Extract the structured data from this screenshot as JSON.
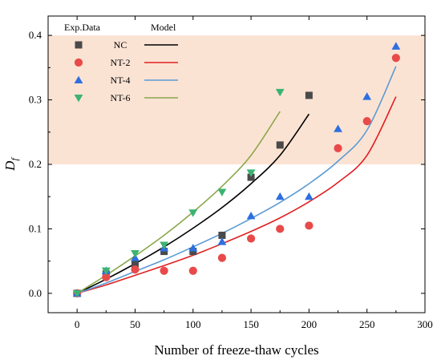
{
  "chart_data": {
    "type": "scatter",
    "xlabel": "Number of freeze-thaw cycles",
    "ylabel": "D",
    "ylabel_sub": "f",
    "xlim": [
      -25,
      300
    ],
    "ylim": [
      -0.03,
      0.43
    ],
    "xticks": [
      "0",
      "50",
      "100",
      "150",
      "200",
      "250",
      "300"
    ],
    "yticks": [
      "0.0",
      "0.1",
      "0.2",
      "0.3",
      "0.4"
    ],
    "highlight_band": {
      "y_from": 0.2,
      "y_to": 0.4,
      "color": "#fbe3d4"
    },
    "legend": {
      "exp_header": "Exp.Data",
      "model_header": "Model",
      "placement": "top-left"
    },
    "series": [
      {
        "name": "NC",
        "marker": "square",
        "marker_color": "#4a4a4a",
        "line_color": "#000000",
        "points": [
          [
            0,
            0.0
          ],
          [
            25,
            0.03
          ],
          [
            50,
            0.045
          ],
          [
            75,
            0.065
          ],
          [
            100,
            0.065
          ],
          [
            125,
            0.09
          ],
          [
            150,
            0.18
          ],
          [
            175,
            0.23
          ],
          [
            200,
            0.307
          ]
        ],
        "model": [
          [
            0,
            0.0
          ],
          [
            25,
            0.022
          ],
          [
            50,
            0.046
          ],
          [
            75,
            0.072
          ],
          [
            100,
            0.101
          ],
          [
            125,
            0.133
          ],
          [
            150,
            0.17
          ],
          [
            175,
            0.214
          ],
          [
            200,
            0.278
          ]
        ]
      },
      {
        "name": "NT-2",
        "marker": "circle",
        "marker_color": "#e84a4a",
        "line_color": "#e02020",
        "points": [
          [
            0,
            0.0
          ],
          [
            25,
            0.025
          ],
          [
            50,
            0.037
          ],
          [
            75,
            0.035
          ],
          [
            100,
            0.035
          ],
          [
            125,
            0.055
          ],
          [
            150,
            0.085
          ],
          [
            175,
            0.1
          ],
          [
            200,
            0.105
          ],
          [
            225,
            0.225
          ],
          [
            250,
            0.267
          ],
          [
            275,
            0.365
          ]
        ],
        "model": [
          [
            0,
            0.0
          ],
          [
            25,
            0.013
          ],
          [
            50,
            0.028
          ],
          [
            75,
            0.043
          ],
          [
            100,
            0.059
          ],
          [
            125,
            0.077
          ],
          [
            150,
            0.096
          ],
          [
            175,
            0.117
          ],
          [
            200,
            0.142
          ],
          [
            225,
            0.172
          ],
          [
            250,
            0.214
          ],
          [
            275,
            0.305
          ]
        ]
      },
      {
        "name": "NT-4",
        "marker": "triangle-up",
        "marker_color": "#2d6fe0",
        "line_color": "#5b9bd5",
        "points": [
          [
            0,
            0.0
          ],
          [
            25,
            0.035
          ],
          [
            50,
            0.055
          ],
          [
            75,
            0.07
          ],
          [
            100,
            0.07
          ],
          [
            125,
            0.08
          ],
          [
            150,
            0.12
          ],
          [
            175,
            0.15
          ],
          [
            200,
            0.15
          ],
          [
            225,
            0.255
          ],
          [
            250,
            0.305
          ],
          [
            275,
            0.383
          ]
        ],
        "model": [
          [
            0,
            0.0
          ],
          [
            25,
            0.016
          ],
          [
            50,
            0.034
          ],
          [
            75,
            0.052
          ],
          [
            100,
            0.072
          ],
          [
            125,
            0.093
          ],
          [
            150,
            0.116
          ],
          [
            175,
            0.141
          ],
          [
            200,
            0.17
          ],
          [
            225,
            0.205
          ],
          [
            250,
            0.253
          ],
          [
            275,
            0.352
          ]
        ]
      },
      {
        "name": "NT-6",
        "marker": "triangle-down",
        "marker_color": "#3cb371",
        "line_color": "#8aa84b",
        "points": [
          [
            0,
            0.0
          ],
          [
            25,
            0.035
          ],
          [
            50,
            0.062
          ],
          [
            75,
            0.075
          ],
          [
            100,
            0.125
          ],
          [
            125,
            0.157
          ],
          [
            150,
            0.187
          ],
          [
            175,
            0.312
          ]
        ],
        "model": [
          [
            0,
            0.0
          ],
          [
            25,
            0.028
          ],
          [
            50,
            0.058
          ],
          [
            75,
            0.09
          ],
          [
            100,
            0.126
          ],
          [
            125,
            0.166
          ],
          [
            150,
            0.214
          ],
          [
            175,
            0.282
          ]
        ]
      }
    ]
  }
}
